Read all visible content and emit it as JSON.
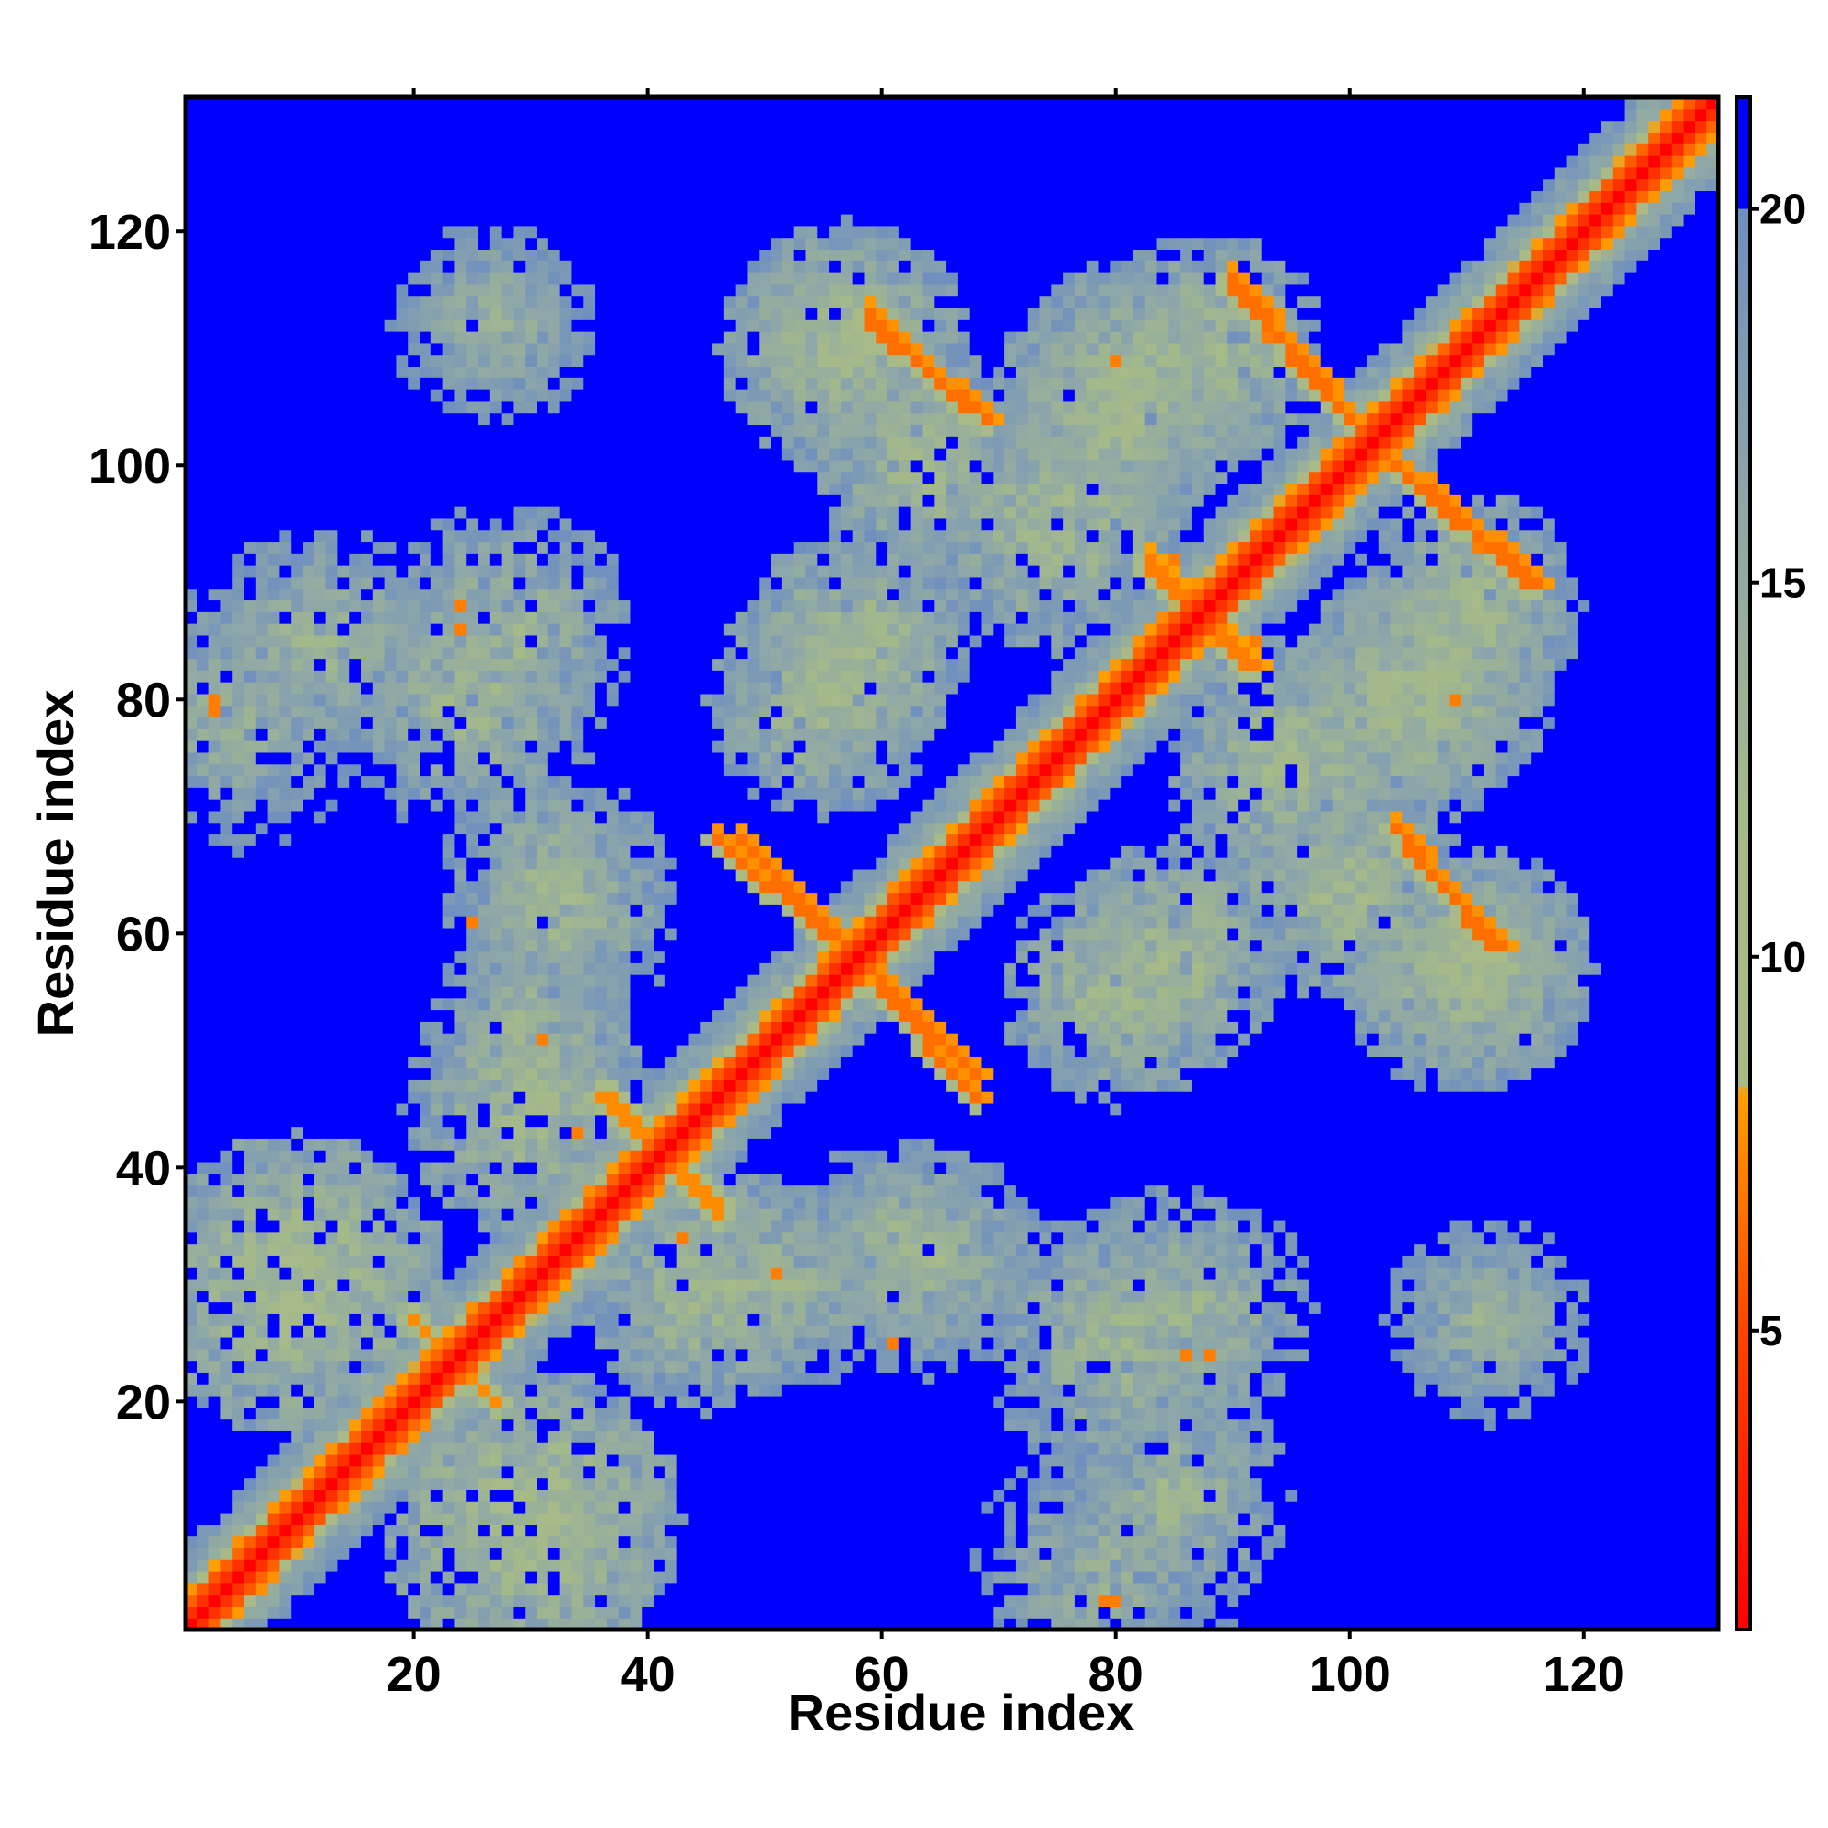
{
  "chart_data": {
    "type": "heatmap",
    "title": "",
    "xlabel": "Residue index",
    "ylabel": "Residue index",
    "xlim": [
      0.5,
      131.5
    ],
    "ylim": [
      0.5,
      131.5
    ],
    "n_residues": 131,
    "x_ticks": [
      20,
      40,
      60,
      80,
      100,
      120
    ],
    "y_ticks": [
      20,
      40,
      60,
      80,
      100,
      120
    ],
    "x_tick_labels": [
      "20",
      "40",
      "60",
      "80",
      "100",
      "120"
    ],
    "y_tick_labels": [
      "20",
      "40",
      "60",
      "80",
      "100",
      "120"
    ],
    "colorbar": {
      "range": [
        1,
        21.5
      ],
      "ticks": [
        5,
        10,
        15,
        20
      ],
      "tick_labels": [
        "5",
        "10",
        "15",
        "20"
      ],
      "cutoff": 20,
      "stops": [
        {
          "value": 1,
          "color": "#ff0000"
        },
        {
          "value": 5,
          "color": "#ff4400"
        },
        {
          "value": 8.2,
          "color": "#ff9f00"
        },
        {
          "value": 8.3,
          "color": "#a9ba86"
        },
        {
          "value": 12,
          "color": "#a4b98a"
        },
        {
          "value": 16,
          "color": "#8ea7a8"
        },
        {
          "value": 20,
          "color": "#6f8fbf"
        },
        {
          "value": 20.01,
          "color": "#0000ff"
        }
      ]
    },
    "value_above_cutoff_color": "#0000ff",
    "description_units": "pairwise residue distance",
    "structure_features": {
      "diagonal": [
        {
          "from": 1,
          "to": 131,
          "dist_near_diagonal": [
            3.8,
            5.5,
            7.5
          ]
        }
      ],
      "contact_segments": [
        {
          "i1": 48,
          "j1": 68,
          "i2": 56,
          "j2": 60,
          "dist": 6.5
        },
        {
          "i1": 60,
          "j1": 55,
          "i2": 68,
          "j2": 46,
          "dist": 6.5
        },
        {
          "i1": 59,
          "j1": 113,
          "i2": 67,
          "j2": 105,
          "dist": 6.5
        },
        {
          "i1": 90,
          "j1": 116,
          "i2": 100,
          "j2": 104,
          "dist": 6.5
        },
        {
          "i1": 104,
          "j1": 100,
          "i2": 115,
          "j2": 90,
          "dist": 6.5
        },
        {
          "i1": 104,
          "j1": 69,
          "i2": 112,
          "j2": 59,
          "dist": 6.5
        },
        {
          "i1": 83,
          "j1": 91,
          "i2": 92,
          "j2": 83,
          "dist": 7.0
        },
        {
          "i1": 36,
          "j1": 46,
          "i2": 46,
          "j2": 37,
          "dist": 7.5
        },
        {
          "i1": 20,
          "j1": 27,
          "i2": 27,
          "j2": 20,
          "dist": 7.5
        }
      ],
      "contact_blobs": [
        {
          "ci": 27,
          "cj": 112,
          "r": 9,
          "dist": 14
        },
        {
          "ci": 12,
          "cj": 85,
          "r": 10,
          "dist": 13
        },
        {
          "ci": 28,
          "cj": 86,
          "r": 11,
          "dist": 13
        },
        {
          "ci": 32,
          "cj": 64,
          "r": 10,
          "dist": 13
        },
        {
          "ci": 30,
          "cj": 45,
          "r": 11,
          "dist": 12
        },
        {
          "ci": 10,
          "cj": 30,
          "r": 13,
          "dist": 11
        },
        {
          "ci": 52,
          "cj": 30,
          "r": 9,
          "dist": 13
        },
        {
          "ci": 62,
          "cj": 33,
          "r": 10,
          "dist": 13
        },
        {
          "ci": 80,
          "cj": 25,
          "r": 12,
          "dist": 13
        },
        {
          "ci": 79,
          "cj": 5,
          "r": 12,
          "dist": 14
        },
        {
          "ci": 112,
          "cj": 27,
          "r": 9,
          "dist": 14
        },
        {
          "ci": 57,
          "cj": 110,
          "r": 11,
          "dist": 12
        },
        {
          "ci": 58,
          "cj": 85,
          "r": 10,
          "dist": 12
        },
        {
          "ci": 80,
          "cj": 105,
          "r": 11,
          "dist": 12
        },
        {
          "ci": 88,
          "cj": 110,
          "r": 10,
          "dist": 12
        },
        {
          "ci": 80,
          "cj": 55,
          "r": 10,
          "dist": 12
        },
        {
          "ci": 95,
          "cj": 75,
          "r": 11,
          "dist": 12
        },
        {
          "ci": 107,
          "cj": 82,
          "r": 11,
          "dist": 12
        },
        {
          "ci": 111,
          "cj": 57,
          "r": 10,
          "dist": 12
        },
        {
          "ci": 100,
          "cj": 64,
          "r": 10,
          "dist": 12
        }
      ],
      "hot_spots": [
        {
          "i": 3,
          "j": 80,
          "dist": 7
        },
        {
          "i": 24,
          "j": 88,
          "dist": 7
        },
        {
          "i": 43,
          "j": 34,
          "dist": 7
        },
        {
          "i": 85,
          "j": 92,
          "dist": 7
        },
        {
          "i": 86,
          "j": 24,
          "dist": 7
        },
        {
          "i": 79,
          "j": 3,
          "dist": 7
        },
        {
          "i": 109,
          "j": 80,
          "dist": 7
        },
        {
          "i": 51,
          "j": 31,
          "dist": 7
        },
        {
          "i": 61,
          "j": 25,
          "dist": 7
        },
        {
          "i": 93,
          "j": 111,
          "dist": 7
        }
      ]
    }
  }
}
